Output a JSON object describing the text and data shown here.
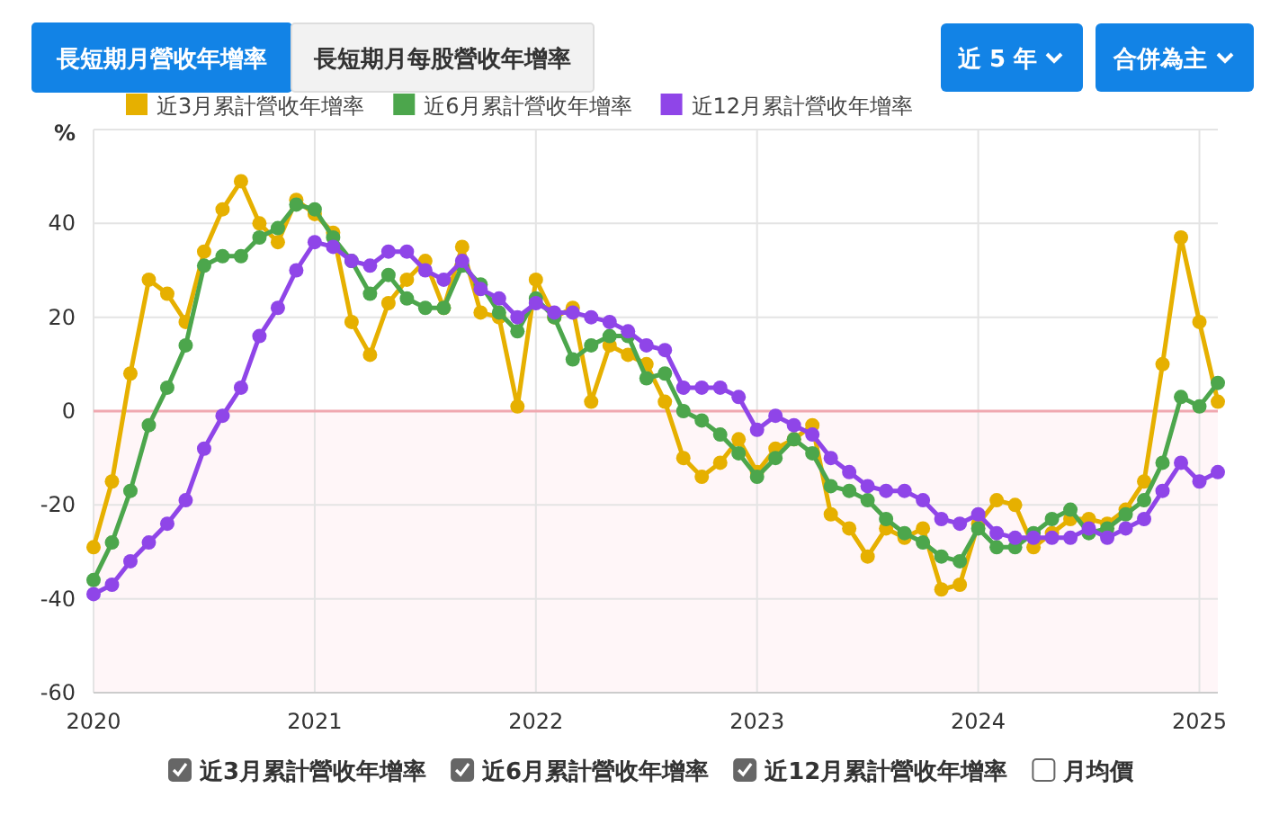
{
  "chart_data": {
    "type": "line",
    "x": [
      "2020-01",
      "2020-02",
      "2020-03",
      "2020-04",
      "2020-05",
      "2020-06",
      "2020-07",
      "2020-08",
      "2020-09",
      "2020-10",
      "2020-11",
      "2020-12",
      "2021-01",
      "2021-02",
      "2021-03",
      "2021-04",
      "2021-05",
      "2021-06",
      "2021-07",
      "2021-08",
      "2021-09",
      "2021-10",
      "2021-11",
      "2021-12",
      "2022-01",
      "2022-02",
      "2022-03",
      "2022-04",
      "2022-05",
      "2022-06",
      "2022-07",
      "2022-08",
      "2022-09",
      "2022-10",
      "2022-11",
      "2022-12",
      "2023-01",
      "2023-02",
      "2023-03",
      "2023-04",
      "2023-05",
      "2023-06",
      "2023-07",
      "2023-08",
      "2023-09",
      "2023-10",
      "2023-11",
      "2023-12",
      "2024-01",
      "2024-02",
      "2024-03",
      "2024-04",
      "2024-05",
      "2024-06",
      "2024-07",
      "2024-08",
      "2024-09",
      "2024-10",
      "2024-11",
      "2024-12",
      "2025-01",
      "2025-02"
    ],
    "series": [
      {
        "name": "近3月累計營收年增率",
        "color": "#e6b000",
        "values": [
          -29,
          -15,
          8,
          28,
          25,
          19,
          34,
          43,
          49,
          40,
          36,
          45,
          42,
          38,
          19,
          12,
          23,
          28,
          32,
          22,
          35,
          21,
          20,
          1,
          28,
          20,
          22,
          2,
          14,
          12,
          10,
          2,
          -10,
          -14,
          -11,
          -6,
          -13,
          -8,
          -6,
          -3,
          -22,
          -25,
          -31,
          -25,
          -27,
          -25,
          -38,
          -37,
          -24,
          -19,
          -20,
          -29,
          -26,
          -23,
          -23,
          -24,
          -21,
          -15,
          10,
          37,
          19,
          2
        ]
      },
      {
        "name": "近6月累計營收年增率",
        "color": "#4ca64c",
        "values": [
          -36,
          -28,
          -17,
          -3,
          5,
          14,
          31,
          33,
          33,
          37,
          39,
          44,
          43,
          37,
          32,
          25,
          29,
          24,
          22,
          22,
          31,
          27,
          21,
          17,
          24,
          20,
          11,
          14,
          16,
          16,
          7,
          8,
          0,
          -2,
          -5,
          -9,
          -14,
          -10,
          -6,
          -9,
          -16,
          -17,
          -19,
          -23,
          -26,
          -28,
          -31,
          -32,
          -25,
          -29,
          -29,
          -26,
          -23,
          -21,
          -26,
          -25,
          -22,
          -19,
          -11,
          3,
          1,
          6
        ]
      },
      {
        "name": "近12月累計營收年增率",
        "color": "#8f45e8",
        "values": [
          -39,
          -37,
          -32,
          -28,
          -24,
          -19,
          -8,
          -1,
          5,
          16,
          22,
          30,
          36,
          35,
          32,
          31,
          34,
          34,
          30,
          28,
          32,
          26,
          24,
          20,
          23,
          21,
          21,
          20,
          19,
          17,
          14,
          13,
          5,
          5,
          5,
          3,
          -4,
          -1,
          -3,
          -5,
          -10,
          -13,
          -16,
          -17,
          -17,
          -19,
          -23,
          -24,
          -22,
          -26,
          -27,
          -27,
          -27,
          -27,
          -25,
          -27,
          -25,
          -23,
          -17,
          -11,
          -15,
          -13
        ]
      }
    ],
    "xlim": [
      "2020-01",
      "2025-02"
    ],
    "xticks": [
      {
        "value": "2020-01",
        "label": "2020"
      },
      {
        "value": "2021-01",
        "label": "2021"
      },
      {
        "value": "2022-01",
        "label": "2022"
      },
      {
        "value": "2023-01",
        "label": "2023"
      },
      {
        "value": "2024-01",
        "label": "2024"
      },
      {
        "value": "2025-01",
        "label": "2025"
      }
    ],
    "ylim": [
      -60,
      60
    ],
    "yticks": [
      -60,
      -40,
      -20,
      0,
      20,
      40
    ],
    "ylabel": "%",
    "ref_lines": [
      {
        "axis": "y",
        "value": 0,
        "color": "#f0a8b0"
      }
    ],
    "bands": [
      {
        "axis": "y",
        "from": -60,
        "to": 0,
        "color": "#fff6f8"
      }
    ],
    "grid": true,
    "legend": "top left",
    "marker": "circle",
    "line_style": "solid",
    "annotations": [
      "長短期月營收年增率",
      "長短期月每股營收年增率",
      "近 5 年",
      "合併為主",
      "月均價"
    ]
  }
}
